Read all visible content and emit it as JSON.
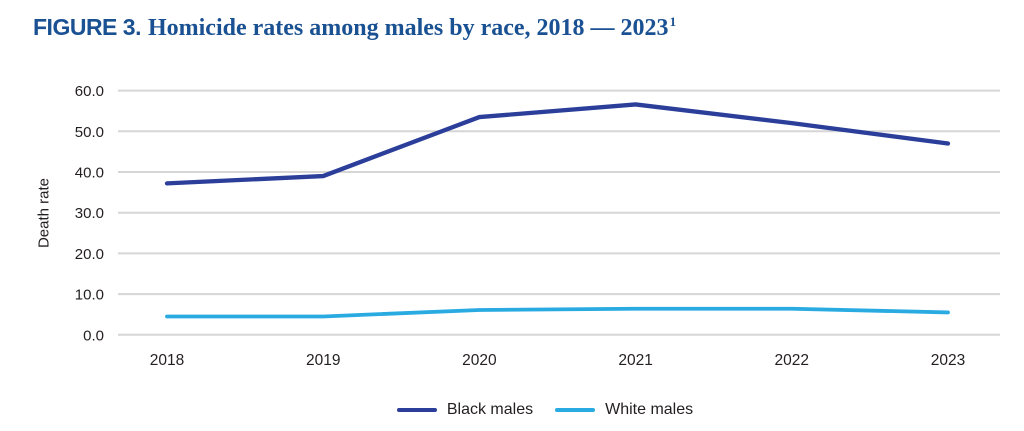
{
  "figure": {
    "label": "FIGURE 3.",
    "title": "Homicide rates among males by race, 2018 — 2023",
    "superscript": "1"
  },
  "chart_data": {
    "type": "line",
    "title": "Homicide rates among males by race, 2018 — 2023",
    "xlabel": "",
    "ylabel": "Death rate",
    "categories": [
      "2018",
      "2019",
      "2020",
      "2021",
      "2022",
      "2023"
    ],
    "series": [
      {
        "name": "Black males",
        "color": "#2b3e9a",
        "values": [
          37.2,
          39.0,
          53.5,
          56.6,
          52.0,
          47.0
        ]
      },
      {
        "name": "White males",
        "color": "#29abe2",
        "values": [
          4.5,
          4.5,
          6.1,
          6.4,
          6.4,
          5.5
        ]
      }
    ],
    "ylim": [
      0,
      60
    ],
    "ytick_step": 10,
    "ytick_labels": [
      "0.0",
      "10.0",
      "20.0",
      "30.0",
      "40.0",
      "50.0",
      "60.0"
    ],
    "grid": true,
    "legend_position": "bottom"
  },
  "colors": {
    "title_text": "#1a5192",
    "tick_text": "#231f20",
    "gridline": "#d6d6d6",
    "background": "#ffffff"
  }
}
